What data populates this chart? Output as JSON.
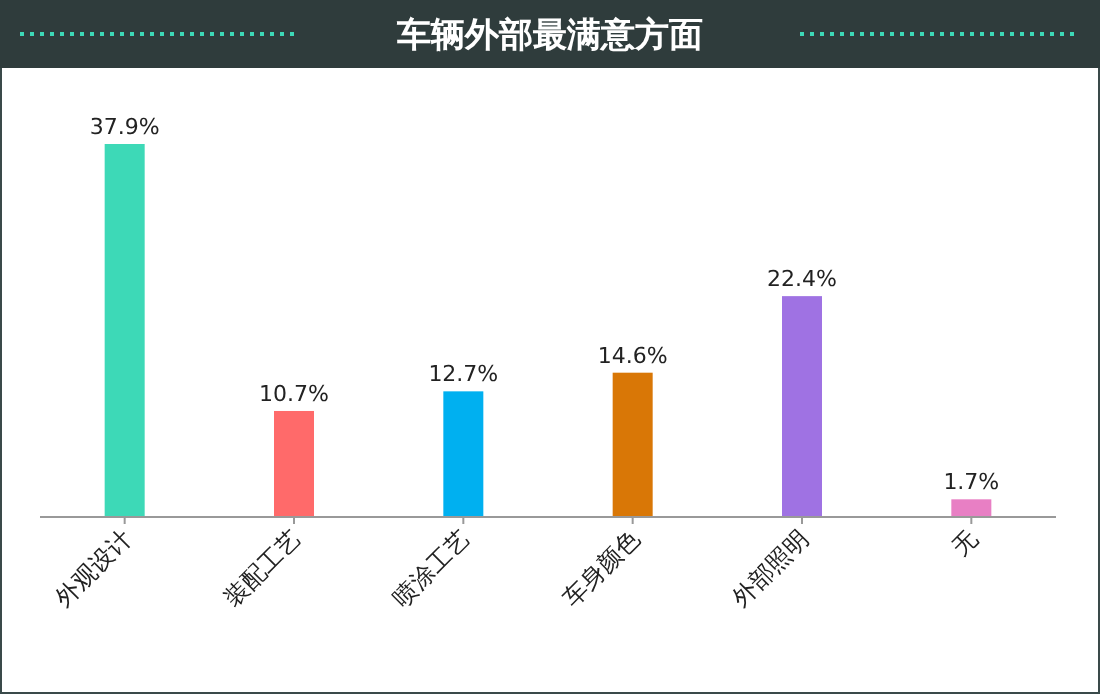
{
  "chart_data": {
    "type": "bar",
    "title": "车辆外部最满意方面",
    "categories": [
      "外观设计",
      "装配工艺",
      "喷涂工艺",
      "车身颜色",
      "外部照明",
      "无"
    ],
    "values": [
      37.9,
      10.7,
      12.7,
      14.6,
      22.4,
      1.7
    ],
    "colors": [
      "#3dd9b7",
      "#ff6a6a",
      "#00b0f0",
      "#d97706",
      "#9f72e3",
      "#e87fc4"
    ],
    "value_labels": [
      "37.9%",
      "10.7%",
      "12.7%",
      "14.6%",
      "22.4%",
      "1.7%"
    ]
  }
}
